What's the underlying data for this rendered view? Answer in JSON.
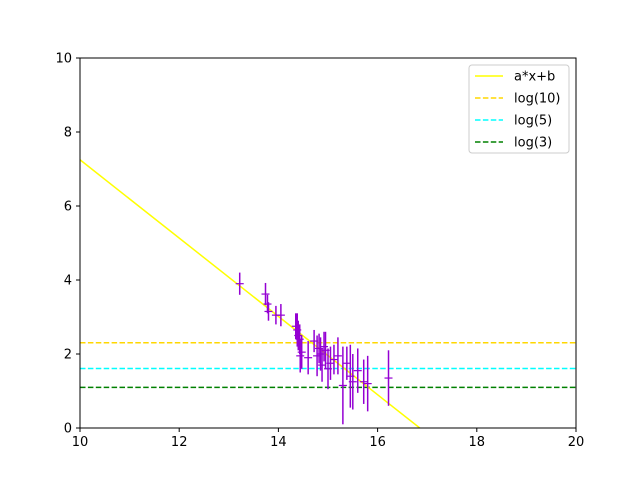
{
  "chart_data": {
    "type": "scatter",
    "xlim": [
      10,
      20
    ],
    "ylim": [
      0,
      10
    ],
    "xticks": [
      "10",
      "12",
      "14",
      "16",
      "18",
      "20"
    ],
    "yticks": [
      "0",
      "2",
      "4",
      "6",
      "8",
      "10"
    ],
    "grid": false,
    "legend_position": "top-right",
    "fit_line": {
      "name": "a*x+b",
      "color": "#ffff00",
      "x": [
        10,
        16.85
      ],
      "y": [
        7.25,
        0
      ]
    },
    "hlines": [
      {
        "name": "log(10)",
        "y": 2.3026,
        "color": "#ffd700"
      },
      {
        "name": "log(5)",
        "y": 1.6094,
        "color": "#00ffff"
      },
      {
        "name": "log(3)",
        "y": 1.0986,
        "color": "#008000"
      }
    ],
    "points": {
      "color": "#9400d3",
      "x": [
        13.22,
        13.74,
        13.78,
        13.8,
        13.95,
        14.05,
        14.35,
        14.38,
        14.4,
        14.43,
        14.44,
        14.47,
        14.6,
        14.72,
        14.78,
        14.82,
        14.85,
        14.88,
        14.92,
        14.95,
        15.0,
        15.05,
        15.12,
        15.2,
        15.3,
        15.38,
        15.45,
        15.5,
        15.6,
        15.72,
        15.8,
        16.22
      ],
      "y": [
        3.9,
        3.62,
        3.35,
        3.15,
        3.05,
        3.05,
        2.75,
        2.65,
        2.5,
        2.4,
        1.95,
        2.05,
        1.9,
        2.35,
        1.95,
        2.15,
        2.0,
        1.7,
        2.2,
        2.1,
        1.6,
        1.75,
        1.85,
        1.95,
        1.15,
        1.75,
        1.4,
        1.25,
        1.55,
        1.25,
        1.2,
        1.35
      ],
      "err": [
        0.3,
        0.3,
        0.25,
        0.25,
        0.25,
        0.3,
        0.35,
        0.45,
        0.4,
        0.4,
        0.45,
        0.45,
        0.45,
        0.3,
        0.55,
        0.4,
        0.45,
        0.45,
        0.4,
        0.5,
        0.55,
        0.45,
        0.4,
        0.5,
        1.05,
        0.45,
        0.85,
        0.75,
        0.6,
        0.6,
        0.75,
        0.75
      ]
    }
  }
}
